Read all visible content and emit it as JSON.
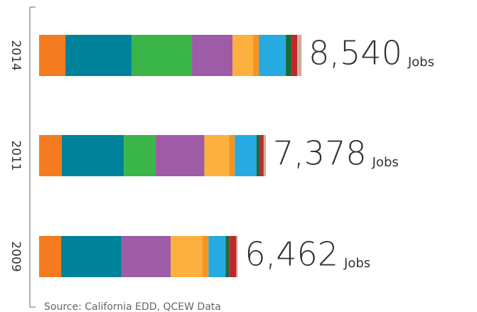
{
  "chart_data": {
    "type": "stacked-bar-horizontal",
    "categories": [
      "2014",
      "2011",
      "2009"
    ],
    "series": [
      {
        "color": "#f47b20",
        "values": [
          856,
          735,
          718
        ]
      },
      {
        "color": "#00829b",
        "values": [
          2152,
          2022,
          1969
        ]
      },
      {
        "color": "#3ab54a",
        "values": [
          1967,
          1034,
          0
        ]
      },
      {
        "color": "#9e5ba6",
        "values": [
          1319,
          1586,
          1598
        ]
      },
      {
        "color": "#fbb040",
        "values": [
          671,
          804,
          1019
        ]
      },
      {
        "color": "#f7941d",
        "values": [
          185,
          184,
          208
        ]
      },
      {
        "color": "#27aae1",
        "values": [
          879,
          712,
          556
        ]
      },
      {
        "color": "#1c6b3a",
        "values": [
          185,
          115,
          116
        ]
      },
      {
        "color": "#c1272d",
        "values": [
          185,
          115,
          232
        ]
      },
      {
        "color": "#c9b09a",
        "values": [
          141,
          71,
          46
        ]
      }
    ],
    "totals": {
      "values": [
        8540,
        7378,
        6462
      ],
      "value_labels": [
        "8,540",
        "7,378",
        "6,462"
      ]
    },
    "unit": "Jobs",
    "xlim": [
      0,
      14250
    ],
    "source": "Source: California EDD, QCEW Data"
  }
}
